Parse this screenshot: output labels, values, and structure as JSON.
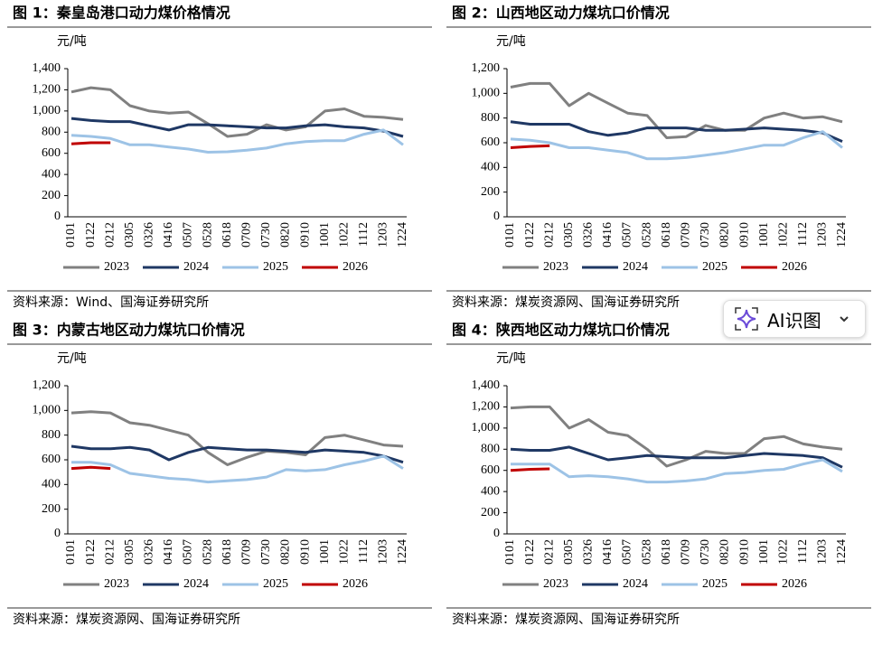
{
  "chart_data": [
    {
      "type": "line",
      "title": "图 1：秦皇岛港口动力煤价格情况",
      "ylabel": "元/吨",
      "source": "资料来源：Wind、国海证券研究所",
      "categories": [
        "0101",
        "0122",
        "0212",
        "0305",
        "0326",
        "0416",
        "0507",
        "0528",
        "0618",
        "0709",
        "0730",
        "0820",
        "0910",
        "1001",
        "1022",
        "1112",
        "1203",
        "1224"
      ],
      "ylim": [
        0,
        1400
      ],
      "yticks": [
        0,
        200,
        400,
        600,
        800,
        {
          "value": 1000,
          "label": "1,000"
        },
        {
          "value": 1200,
          "label": "1,200"
        },
        {
          "value": 1400,
          "label": "1,400"
        }
      ],
      "series": [
        {
          "name": "2023",
          "color": "#808080",
          "values": [
            1180,
            1220,
            1200,
            1050,
            1000,
            980,
            990,
            880,
            760,
            780,
            870,
            820,
            850,
            1000,
            1020,
            950,
            940,
            920
          ]
        },
        {
          "name": "2024",
          "color": "#1f3864",
          "values": [
            930,
            910,
            900,
            900,
            860,
            820,
            870,
            870,
            860,
            850,
            840,
            840,
            860,
            870,
            850,
            840,
            810,
            760
          ]
        },
        {
          "name": "2025",
          "color": "#9dc3e6",
          "values": [
            770,
            760,
            740,
            680,
            680,
            660,
            640,
            610,
            615,
            630,
            650,
            690,
            710,
            720,
            720,
            780,
            820,
            680
          ]
        },
        {
          "name": "2026",
          "color": "#c00000",
          "values": [
            690,
            700,
            700,
            null,
            null,
            null,
            null,
            null,
            null,
            null,
            null,
            null,
            null,
            null,
            null,
            null,
            null,
            null
          ]
        }
      ]
    },
    {
      "type": "line",
      "title": "图 2：山西地区动力煤坑口价情况",
      "ylabel": "元/吨",
      "source": "资料来源：煤炭资源网、国海证券研究所",
      "categories": [
        "0101",
        "0122",
        "0212",
        "0305",
        "0326",
        "0416",
        "0507",
        "0528",
        "0618",
        "0709",
        "0730",
        "0820",
        "0910",
        "1001",
        "1022",
        "1112",
        "1203",
        "1224"
      ],
      "ylim": [
        0,
        1200
      ],
      "yticks": [
        0,
        200,
        400,
        600,
        800,
        {
          "value": 1000,
          "label": "1,000"
        },
        {
          "value": 1200,
          "label": "1,200"
        }
      ],
      "series": [
        {
          "name": "2023",
          "color": "#808080",
          "values": [
            1050,
            1080,
            1080,
            900,
            1000,
            920,
            840,
            820,
            640,
            650,
            740,
            700,
            700,
            800,
            840,
            800,
            810,
            770
          ]
        },
        {
          "name": "2024",
          "color": "#1f3864",
          "values": [
            770,
            750,
            750,
            750,
            690,
            660,
            680,
            720,
            720,
            720,
            700,
            700,
            710,
            720,
            710,
            700,
            680,
            610
          ]
        },
        {
          "name": "2025",
          "color": "#9dc3e6",
          "values": [
            630,
            620,
            600,
            560,
            560,
            540,
            520,
            470,
            470,
            480,
            500,
            520,
            550,
            580,
            580,
            640,
            690,
            560
          ]
        },
        {
          "name": "2026",
          "color": "#c00000",
          "values": [
            560,
            570,
            575,
            null,
            null,
            null,
            null,
            null,
            null,
            null,
            null,
            null,
            null,
            null,
            null,
            null,
            null,
            null
          ]
        }
      ]
    },
    {
      "type": "line",
      "title": "图 3：内蒙古地区动力煤坑口价情况",
      "ylabel": "元/吨",
      "source": "资料来源：煤炭资源网、国海证券研究所",
      "categories": [
        "0101",
        "0122",
        "0212",
        "0305",
        "0326",
        "0416",
        "0507",
        "0528",
        "0618",
        "0709",
        "0730",
        "0820",
        "0910",
        "1001",
        "1022",
        "1112",
        "1203",
        "1224"
      ],
      "ylim": [
        0,
        1200
      ],
      "yticks": [
        0,
        200,
        400,
        600,
        800,
        {
          "value": 1000,
          "label": "1,000"
        },
        {
          "value": 1200,
          "label": "1,200"
        }
      ],
      "series": [
        {
          "name": "2023",
          "color": "#808080",
          "values": [
            980,
            990,
            980,
            900,
            880,
            840,
            800,
            660,
            560,
            620,
            670,
            660,
            640,
            780,
            800,
            760,
            720,
            710
          ]
        },
        {
          "name": "2024",
          "color": "#1f3864",
          "values": [
            710,
            690,
            690,
            700,
            680,
            600,
            660,
            700,
            690,
            680,
            680,
            670,
            660,
            680,
            670,
            660,
            630,
            580
          ]
        },
        {
          "name": "2025",
          "color": "#9dc3e6",
          "values": [
            580,
            580,
            560,
            490,
            470,
            450,
            440,
            420,
            430,
            440,
            460,
            520,
            510,
            520,
            560,
            590,
            630,
            530
          ]
        },
        {
          "name": "2026",
          "color": "#c00000",
          "values": [
            530,
            540,
            530,
            null,
            null,
            null,
            null,
            null,
            null,
            null,
            null,
            null,
            null,
            null,
            null,
            null,
            null,
            null
          ]
        }
      ]
    },
    {
      "type": "line",
      "title": "图 4：陕西地区动力煤坑口价情况",
      "ylabel": "元/吨",
      "source": "资料来源：煤炭资源网、国海证券研究所",
      "categories": [
        "0101",
        "0122",
        "0212",
        "0305",
        "0326",
        "0416",
        "0507",
        "0528",
        "0618",
        "0709",
        "0730",
        "0820",
        "0910",
        "1001",
        "1022",
        "1112",
        "1203",
        "1224"
      ],
      "ylim": [
        0,
        1400
      ],
      "yticks": [
        0,
        200,
        400,
        600,
        800,
        {
          "value": 1000,
          "label": "1,000"
        },
        {
          "value": 1200,
          "label": "1,200"
        },
        {
          "value": 1400,
          "label": "1,400"
        }
      ],
      "series": [
        {
          "name": "2023",
          "color": "#808080",
          "values": [
            1190,
            1200,
            1200,
            1000,
            1080,
            960,
            930,
            800,
            640,
            700,
            780,
            760,
            760,
            900,
            920,
            850,
            820,
            800
          ]
        },
        {
          "name": "2024",
          "color": "#1f3864",
          "values": [
            800,
            790,
            790,
            820,
            760,
            700,
            720,
            740,
            730,
            720,
            720,
            720,
            740,
            760,
            750,
            740,
            720,
            630
          ]
        },
        {
          "name": "2025",
          "color": "#9dc3e6",
          "values": [
            660,
            660,
            660,
            540,
            550,
            540,
            520,
            490,
            490,
            500,
            520,
            570,
            580,
            600,
            610,
            660,
            700,
            590
          ]
        },
        {
          "name": "2026",
          "color": "#c00000",
          "values": [
            600,
            610,
            615,
            null,
            null,
            null,
            null,
            null,
            null,
            null,
            null,
            null,
            null,
            null,
            null,
            null,
            null,
            null
          ]
        }
      ]
    }
  ],
  "overlay_button": "AI识图"
}
